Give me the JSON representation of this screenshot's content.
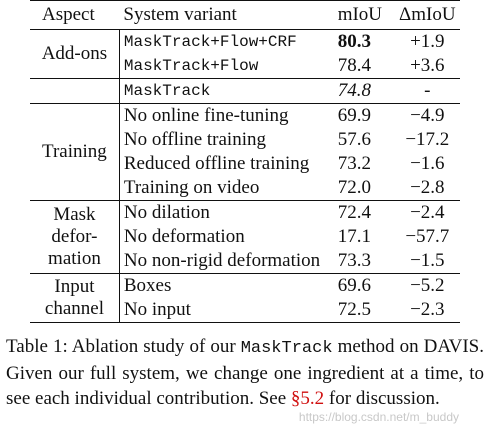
{
  "table": {
    "headers": [
      "Aspect",
      "System variant",
      "mIoU",
      "ΔmIoU"
    ],
    "groups": [
      {
        "aspect": "Add-ons",
        "rows": [
          {
            "variant": "MaskTrack+Flow+CRF",
            "miou": "80.3",
            "delta": "+1.9"
          },
          {
            "variant": "MaskTrack+Flow",
            "miou": "78.4",
            "delta": "+3.6"
          }
        ]
      },
      {
        "aspect": "",
        "rows": [
          {
            "variant": "MaskTrack",
            "miou": "74.8",
            "delta": "-"
          }
        ]
      },
      {
        "aspect": "Training",
        "rows": [
          {
            "variant": "No online fine-tuning",
            "miou": "69.9",
            "delta": "−4.9"
          },
          {
            "variant": "No offline training",
            "miou": "57.6",
            "delta": "−17.2"
          },
          {
            "variant": "Reduced offline training",
            "miou": "73.2",
            "delta": "−1.6"
          },
          {
            "variant": "Training on video",
            "miou": "72.0",
            "delta": "−2.8"
          }
        ]
      },
      {
        "aspect_lines": [
          "Mask",
          "defor-",
          "mation"
        ],
        "rows": [
          {
            "variant": "No dilation",
            "miou": "72.4",
            "delta": "−2.4"
          },
          {
            "variant": "No deformation",
            "miou": "17.1",
            "delta": "−57.7"
          },
          {
            "variant": "No non-rigid deformation",
            "miou": "73.3",
            "delta": "−1.5"
          }
        ]
      },
      {
        "aspect_lines": [
          "Input",
          "channel"
        ],
        "rows": [
          {
            "variant": "Boxes",
            "miou": "69.6",
            "delta": "−5.2"
          },
          {
            "variant": "No input",
            "miou": "72.5",
            "delta": "−2.3"
          }
        ]
      }
    ]
  },
  "caption": {
    "part1": "Table 1:  Ablation study of our ",
    "method": "MaskTrack",
    "part2": " method on DAVIS. Given our full system, we change one ingredient at a time, to see each individual contribution. See ",
    "ref": "§5.2",
    "part3": " for discussion."
  },
  "watermark": "https://blog.csdn.net/m_buddy"
}
